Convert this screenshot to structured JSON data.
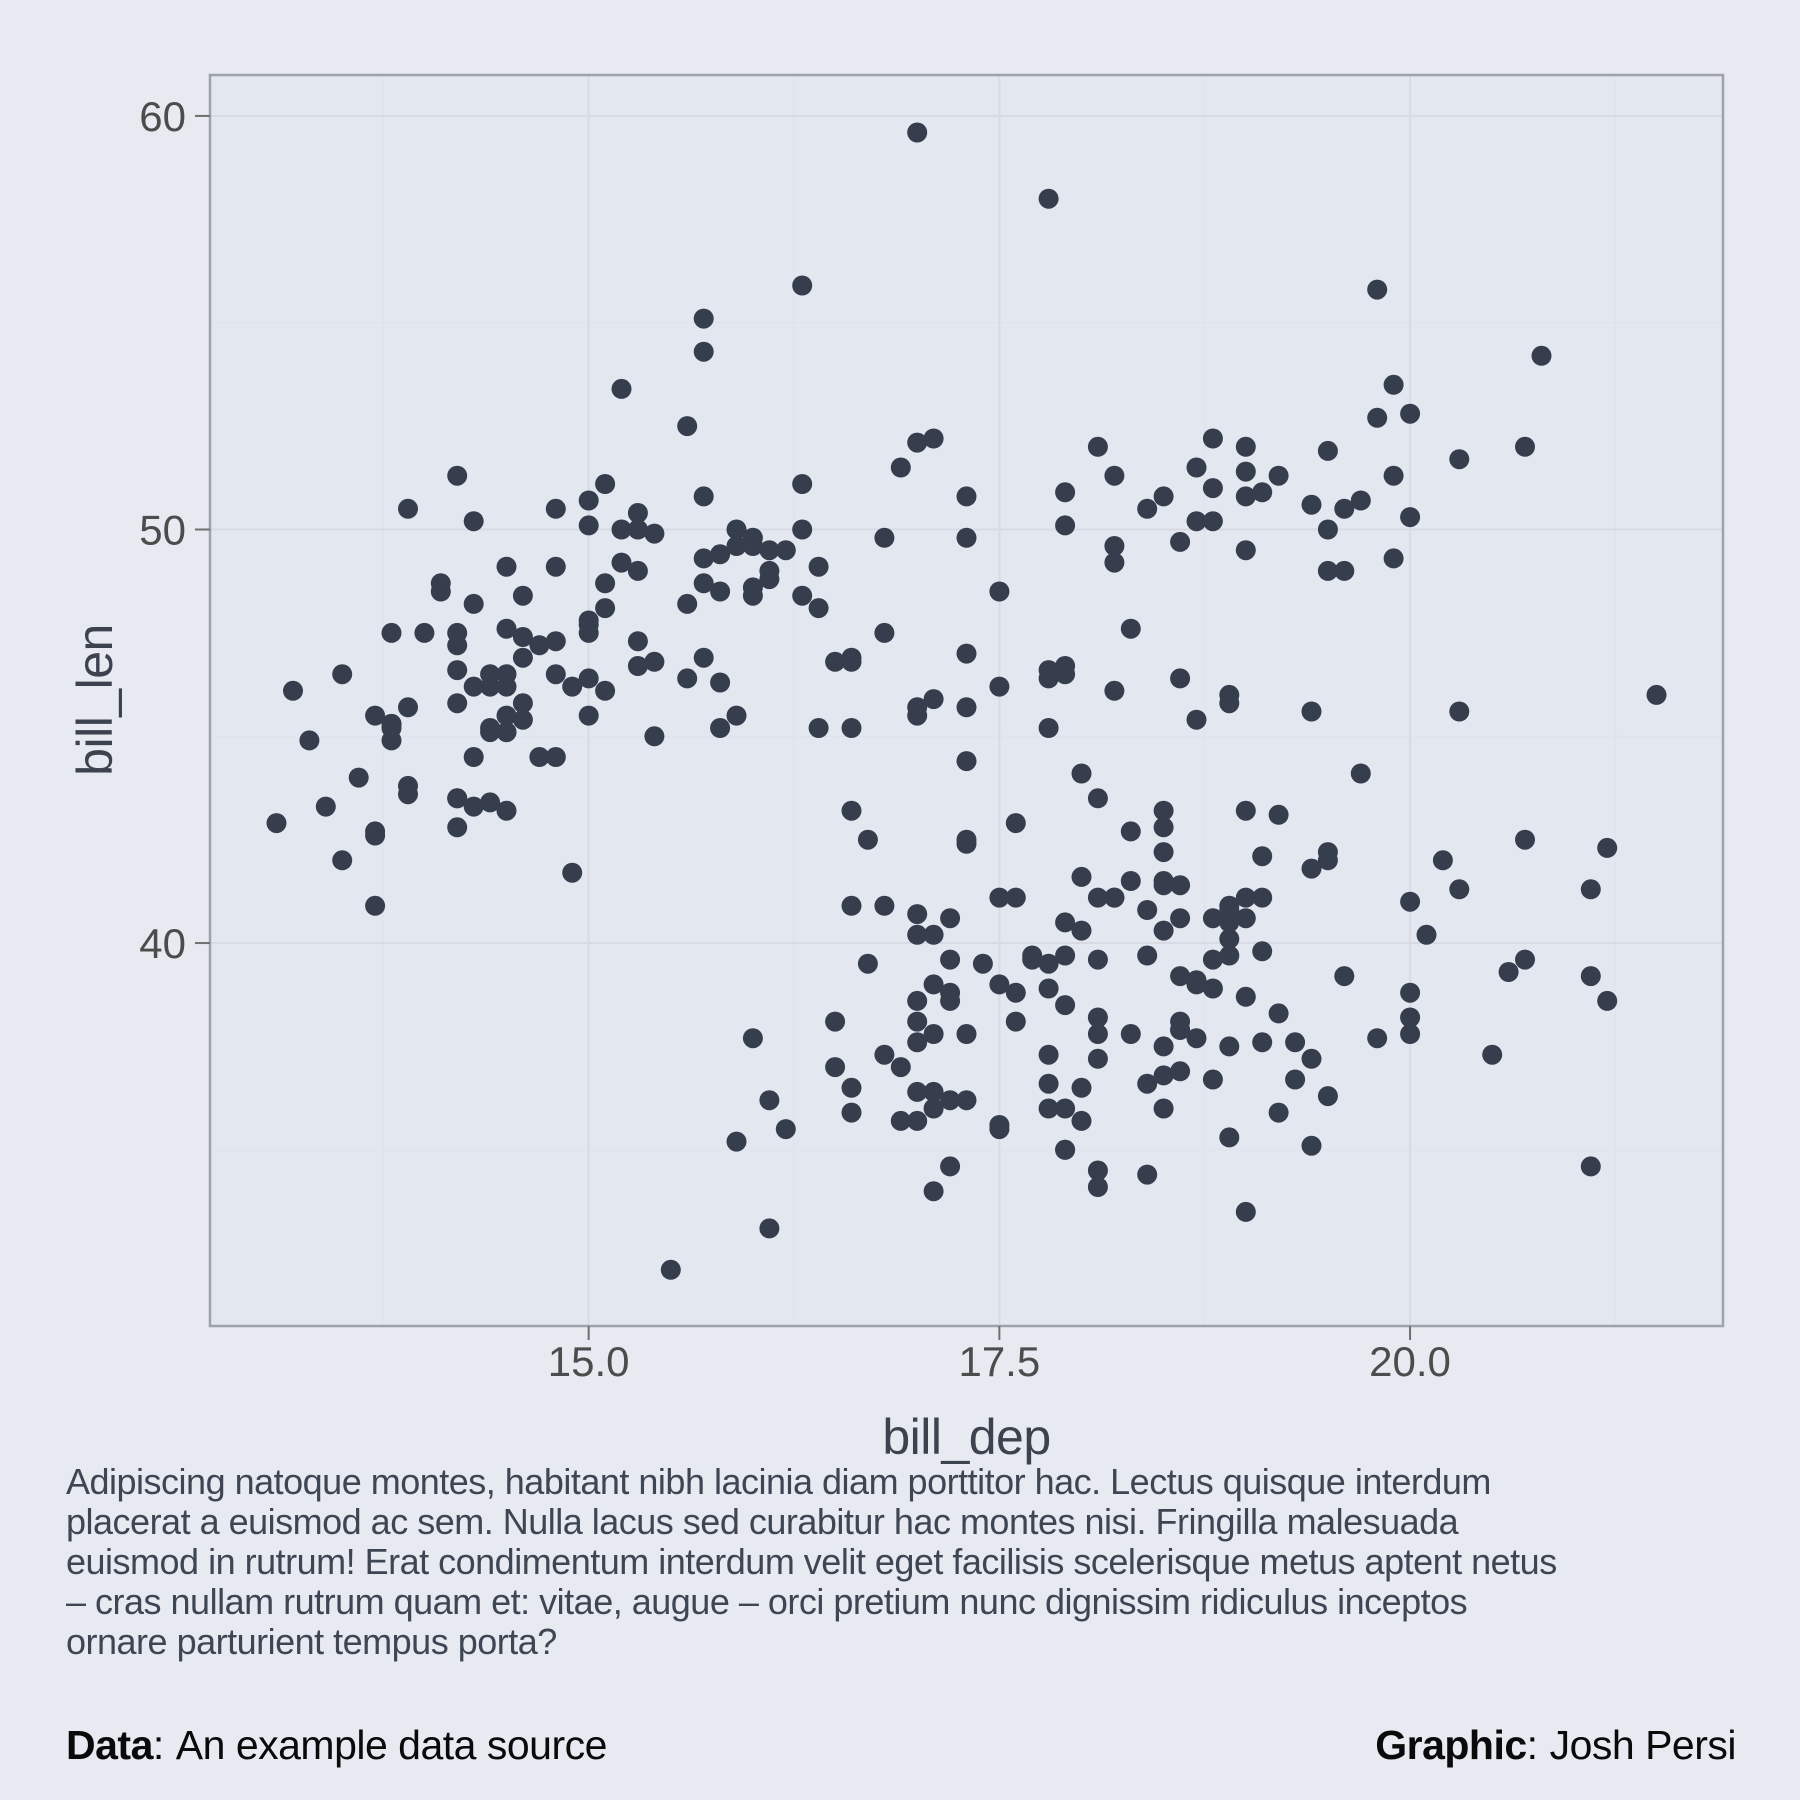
{
  "chart_data": {
    "type": "scatter",
    "xlabel": "bill_dep",
    "ylabel": "bill_len",
    "xlim": [
      12.695,
      21.905
    ],
    "ylim": [
      30.74,
      60.99
    ],
    "x_ticks": [
      15.0,
      17.5,
      20.0
    ],
    "x_tick_labels": [
      "15.0",
      "17.5",
      "20.0"
    ],
    "x_minor_ticks": [
      13.75,
      16.25,
      18.75,
      21.25
    ],
    "y_ticks": [
      40,
      50,
      60
    ],
    "y_tick_labels": [
      "40",
      "50",
      "60"
    ],
    "y_minor_ticks": [
      35,
      45,
      55
    ],
    "grid": true,
    "legend": "none",
    "point_color": "#363E4E",
    "point_radius": 10,
    "panel_bg": "#E3E7EF",
    "outer_bg": "#E8EAF1",
    "major_grid_color": "#D8DBE3",
    "minor_grid_color": "#E0E3EB",
    "border_color": "#9FA2A8",
    "tick_color": "#6F6F6F",
    "tick_label_color": "#4C4C4C",
    "points": [
      [
        18.7,
        39.1
      ],
      [
        17.4,
        39.5
      ],
      [
        18.0,
        40.3
      ],
      [
        19.3,
        36.7
      ],
      [
        20.6,
        39.3
      ],
      [
        17.8,
        38.9
      ],
      [
        19.6,
        39.2
      ],
      [
        18.1,
        34.1
      ],
      [
        20.2,
        42.0
      ],
      [
        17.1,
        37.8
      ],
      [
        17.3,
        37.8
      ],
      [
        17.6,
        41.1
      ],
      [
        21.2,
        38.6
      ],
      [
        21.1,
        34.6
      ],
      [
        17.8,
        36.6
      ],
      [
        19.0,
        38.7
      ],
      [
        20.7,
        42.5
      ],
      [
        18.4,
        34.4
      ],
      [
        21.5,
        46.0
      ],
      [
        18.3,
        37.8
      ],
      [
        18.7,
        37.7
      ],
      [
        19.2,
        35.9
      ],
      [
        18.1,
        38.2
      ],
      [
        17.2,
        38.8
      ],
      [
        18.9,
        35.3
      ],
      [
        18.6,
        40.6
      ],
      [
        17.9,
        40.5
      ],
      [
        18.6,
        37.9
      ],
      [
        18.9,
        40.5
      ],
      [
        16.7,
        39.5
      ],
      [
        18.1,
        37.2
      ],
      [
        17.8,
        39.5
      ],
      [
        18.9,
        40.9
      ],
      [
        17.0,
        36.4
      ],
      [
        21.1,
        39.2
      ],
      [
        20.0,
        38.8
      ],
      [
        18.5,
        42.2
      ],
      [
        19.3,
        37.6
      ],
      [
        19.1,
        39.8
      ],
      [
        18.0,
        36.5
      ],
      [
        18.4,
        40.8
      ],
      [
        18.5,
        36.0
      ],
      [
        19.7,
        44.1
      ],
      [
        16.9,
        37.0
      ],
      [
        18.8,
        39.6
      ],
      [
        19.0,
        41.1
      ],
      [
        18.9,
        37.5
      ],
      [
        17.9,
        36.0
      ],
      [
        21.2,
        42.3
      ],
      [
        17.7,
        39.6
      ],
      [
        18.9,
        40.1
      ],
      [
        17.9,
        35.0
      ],
      [
        19.5,
        42.0
      ],
      [
        18.1,
        34.5
      ],
      [
        18.6,
        41.4
      ],
      [
        17.5,
        39.0
      ],
      [
        18.8,
        40.6
      ],
      [
        16.6,
        36.5
      ],
      [
        19.1,
        37.6
      ],
      [
        16.9,
        35.7
      ],
      [
        21.1,
        41.3
      ],
      [
        17.0,
        37.6
      ],
      [
        18.2,
        41.1
      ],
      [
        17.1,
        36.4
      ],
      [
        18.0,
        41.6
      ],
      [
        16.2,
        35.5
      ],
      [
        19.1,
        41.1
      ],
      [
        16.6,
        35.9
      ],
      [
        19.4,
        41.8
      ],
      [
        19.0,
        33.5
      ],
      [
        18.4,
        39.7
      ],
      [
        17.2,
        39.6
      ],
      [
        18.9,
        45.8
      ],
      [
        17.5,
        35.5
      ],
      [
        18.5,
        42.8
      ],
      [
        16.8,
        40.9
      ],
      [
        19.4,
        37.2
      ],
      [
        16.1,
        36.2
      ],
      [
        19.1,
        42.1
      ],
      [
        17.2,
        34.6
      ],
      [
        17.6,
        42.9
      ],
      [
        18.8,
        36.7
      ],
      [
        19.4,
        35.1
      ],
      [
        20.5,
        37.3
      ],
      [
        20.3,
        41.3
      ],
      [
        19.5,
        36.3
      ],
      [
        18.6,
        36.9
      ],
      [
        19.2,
        38.3
      ],
      [
        18.8,
        38.9
      ],
      [
        18.0,
        35.7
      ],
      [
        18.1,
        41.1
      ],
      [
        17.1,
        34.0
      ],
      [
        18.1,
        39.6
      ],
      [
        17.3,
        36.2
      ],
      [
        18.9,
        40.8
      ],
      [
        18.6,
        38.1
      ],
      [
        18.5,
        40.3
      ],
      [
        16.1,
        33.1
      ],
      [
        18.5,
        43.2
      ],
      [
        17.9,
        35.0
      ],
      [
        20.0,
        41.0
      ],
      [
        16.0,
        37.7
      ],
      [
        20.0,
        37.8
      ],
      [
        18.6,
        37.9
      ],
      [
        18.9,
        39.7
      ],
      [
        17.2,
        38.6
      ],
      [
        20.0,
        38.2
      ],
      [
        17.0,
        38.1
      ],
      [
        19.0,
        43.2
      ],
      [
        16.5,
        38.1
      ],
      [
        20.3,
        45.6
      ],
      [
        17.7,
        39.7
      ],
      [
        19.5,
        42.2
      ],
      [
        20.7,
        39.6
      ],
      [
        18.3,
        42.7
      ],
      [
        17.0,
        38.6
      ],
      [
        17.8,
        37.3
      ],
      [
        17.0,
        35.7
      ],
      [
        18.2,
        41.1
      ],
      [
        17.2,
        36.2
      ],
      [
        19.8,
        37.7
      ],
      [
        17.0,
        40.2
      ],
      [
        18.5,
        41.4
      ],
      [
        15.9,
        35.2
      ],
      [
        19.0,
        40.6
      ],
      [
        17.6,
        38.8
      ],
      [
        18.3,
        41.5
      ],
      [
        17.1,
        39.0
      ],
      [
        18.0,
        44.1
      ],
      [
        17.9,
        38.5
      ],
      [
        19.2,
        43.1
      ],
      [
        18.5,
        36.8
      ],
      [
        18.5,
        37.5
      ],
      [
        17.6,
        38.1
      ],
      [
        17.5,
        41.1
      ],
      [
        17.5,
        35.6
      ],
      [
        20.1,
        40.2
      ],
      [
        16.5,
        37.0
      ],
      [
        17.9,
        39.7
      ],
      [
        17.1,
        40.2
      ],
      [
        17.2,
        40.6
      ],
      [
        15.5,
        32.1
      ],
      [
        17.0,
        40.7
      ],
      [
        16.8,
        37.3
      ],
      [
        18.7,
        39.0
      ],
      [
        18.6,
        39.2
      ],
      [
        18.4,
        36.6
      ],
      [
        17.8,
        36.0
      ],
      [
        18.1,
        37.8
      ],
      [
        17.1,
        36.0
      ],
      [
        18.5,
        41.5
      ],
      [
        17.9,
        46.5
      ],
      [
        19.5,
        50.0
      ],
      [
        19.2,
        51.3
      ],
      [
        18.7,
        45.4
      ],
      [
        19.8,
        52.7
      ],
      [
        17.8,
        45.2
      ],
      [
        18.2,
        46.1
      ],
      [
        18.2,
        51.3
      ],
      [
        18.9,
        46.0
      ],
      [
        19.9,
        51.3
      ],
      [
        17.8,
        46.6
      ],
      [
        20.3,
        51.7
      ],
      [
        17.3,
        47.0
      ],
      [
        18.1,
        52.0
      ],
      [
        17.1,
        45.9
      ],
      [
        19.6,
        50.5
      ],
      [
        20.0,
        50.3
      ],
      [
        17.8,
        58.0
      ],
      [
        18.6,
        46.4
      ],
      [
        18.2,
        49.2
      ],
      [
        17.3,
        42.4
      ],
      [
        17.5,
        48.5
      ],
      [
        16.6,
        43.2
      ],
      [
        19.4,
        50.6
      ],
      [
        17.9,
        46.7
      ],
      [
        19.0,
        52.0
      ],
      [
        18.4,
        50.5
      ],
      [
        19.0,
        49.5
      ],
      [
        17.8,
        46.4
      ],
      [
        20.0,
        52.8
      ],
      [
        16.6,
        40.9
      ],
      [
        20.8,
        54.2
      ],
      [
        16.7,
        42.5
      ],
      [
        18.8,
        51.0
      ],
      [
        18.6,
        49.7
      ],
      [
        16.8,
        47.5
      ],
      [
        18.3,
        47.6
      ],
      [
        20.7,
        52.0
      ],
      [
        16.6,
        46.9
      ],
      [
        19.9,
        53.5
      ],
      [
        19.5,
        49.0
      ],
      [
        17.5,
        46.2
      ],
      [
        19.1,
        50.9
      ],
      [
        17.0,
        45.5
      ],
      [
        17.9,
        50.9
      ],
      [
        18.5,
        50.8
      ],
      [
        17.9,
        50.1
      ],
      [
        19.6,
        49.0
      ],
      [
        18.7,
        51.5
      ],
      [
        17.3,
        49.8
      ],
      [
        16.4,
        48.1
      ],
      [
        19.0,
        51.4
      ],
      [
        17.3,
        45.7
      ],
      [
        19.7,
        50.7
      ],
      [
        17.3,
        42.5
      ],
      [
        18.8,
        52.2
      ],
      [
        16.6,
        45.2
      ],
      [
        19.9,
        49.3
      ],
      [
        18.8,
        50.2
      ],
      [
        19.4,
        45.6
      ],
      [
        19.5,
        51.9
      ],
      [
        16.5,
        46.8
      ],
      [
        17.0,
        45.7
      ],
      [
        19.8,
        55.8
      ],
      [
        18.1,
        43.5
      ],
      [
        18.2,
        49.6
      ],
      [
        19.0,
        50.8
      ],
      [
        18.7,
        50.2
      ],
      [
        13.2,
        46.1
      ],
      [
        16.3,
        50.0
      ],
      [
        14.1,
        48.7
      ],
      [
        15.2,
        50.0
      ],
      [
        14.5,
        47.6
      ],
      [
        13.5,
        46.5
      ],
      [
        14.6,
        45.4
      ],
      [
        15.3,
        46.7
      ],
      [
        13.4,
        43.3
      ],
      [
        15.4,
        46.8
      ],
      [
        13.7,
        40.9
      ],
      [
        16.1,
        49.0
      ],
      [
        13.7,
        45.5
      ],
      [
        14.6,
        48.4
      ],
      [
        14.6,
        45.8
      ],
      [
        15.7,
        49.3
      ],
      [
        13.5,
        42.0
      ],
      [
        15.2,
        49.2
      ],
      [
        14.5,
        46.2
      ],
      [
        15.1,
        48.7
      ],
      [
        14.3,
        50.2
      ],
      [
        14.5,
        45.1
      ],
      [
        14.5,
        46.5
      ],
      [
        15.8,
        46.3
      ],
      [
        13.1,
        42.9
      ],
      [
        15.1,
        46.1
      ],
      [
        14.3,
        44.5
      ],
      [
        15.0,
        47.8
      ],
      [
        14.3,
        48.2
      ],
      [
        15.3,
        50.0
      ],
      [
        15.3,
        47.3
      ],
      [
        14.2,
        42.8
      ],
      [
        14.5,
        45.1
      ],
      [
        17.0,
        59.6
      ],
      [
        14.8,
        49.1
      ],
      [
        16.3,
        48.4
      ],
      [
        13.7,
        42.6
      ],
      [
        17.3,
        44.4
      ],
      [
        13.6,
        44.0
      ],
      [
        15.7,
        48.7
      ],
      [
        13.7,
        42.7
      ],
      [
        16.0,
        49.6
      ],
      [
        13.8,
        45.3
      ],
      [
        15.9,
        49.6
      ],
      [
        13.9,
        50.5
      ],
      [
        13.9,
        43.6
      ],
      [
        15.9,
        45.5
      ],
      [
        13.3,
        44.9
      ],
      [
        15.8,
        45.2
      ],
      [
        14.2,
        46.6
      ],
      [
        14.1,
        48.5
      ],
      [
        14.4,
        45.1
      ],
      [
        15.0,
        50.1
      ],
      [
        14.4,
        46.5
      ],
      [
        15.4,
        45.0
      ],
      [
        13.9,
        43.8
      ],
      [
        15.0,
        45.5
      ],
      [
        14.5,
        43.2
      ],
      [
        15.3,
        50.4
      ],
      [
        13.8,
        45.3
      ],
      [
        14.9,
        46.2
      ],
      [
        13.9,
        45.7
      ],
      [
        15.7,
        54.3
      ],
      [
        14.2,
        45.8
      ],
      [
        16.8,
        49.8
      ],
      [
        14.4,
        46.2
      ],
      [
        16.2,
        49.5
      ],
      [
        14.2,
        43.5
      ],
      [
        15.0,
        50.7
      ],
      [
        15.0,
        47.7
      ],
      [
        15.6,
        46.4
      ],
      [
        15.6,
        48.2
      ],
      [
        14.8,
        46.5
      ],
      [
        15.0,
        46.4
      ],
      [
        16.0,
        48.6
      ],
      [
        14.2,
        47.5
      ],
      [
        16.3,
        51.1
      ],
      [
        13.8,
        45.2
      ],
      [
        16.4,
        45.2
      ],
      [
        14.5,
        49.1
      ],
      [
        15.6,
        52.5
      ],
      [
        14.6,
        47.4
      ],
      [
        15.9,
        50.0
      ],
      [
        13.8,
        44.9
      ],
      [
        17.3,
        50.8
      ],
      [
        14.4,
        43.4
      ],
      [
        14.2,
        51.3
      ],
      [
        14.0,
        47.5
      ],
      [
        17.0,
        52.1
      ],
      [
        15.0,
        47.5
      ],
      [
        17.1,
        52.2
      ],
      [
        14.5,
        45.5
      ],
      [
        16.1,
        49.5
      ],
      [
        14.7,
        44.5
      ],
      [
        15.7,
        50.8
      ],
      [
        15.8,
        49.4
      ],
      [
        14.6,
        46.9
      ],
      [
        16.0,
        48.4
      ],
      [
        15.1,
        51.1
      ],
      [
        15.8,
        48.5
      ],
      [
        16.3,
        55.9
      ],
      [
        14.2,
        47.2
      ],
      [
        16.4,
        49.1
      ],
      [
        14.8,
        47.3
      ],
      [
        16.6,
        46.8
      ],
      [
        14.9,
        41.7
      ],
      [
        15.2,
        53.4
      ],
      [
        14.3,
        43.3
      ],
      [
        15.1,
        48.1
      ],
      [
        14.8,
        50.5
      ],
      [
        16.0,
        49.8
      ],
      [
        14.2,
        43.5
      ],
      [
        16.9,
        51.5
      ],
      [
        14.3,
        46.2
      ],
      [
        15.7,
        55.1
      ],
      [
        14.8,
        44.5
      ],
      [
        16.1,
        48.8
      ],
      [
        14.7,
        47.2
      ],
      [
        14.4,
        45.2
      ],
      [
        15.4,
        49.9
      ],
      [
        13.8,
        47.5
      ],
      [
        15.3,
        49.0
      ],
      [
        15.7,
        46.9
      ]
    ]
  },
  "caption": "Adipiscing natoque montes, habitant nibh lacinia diam porttitor hac. Lectus quisque interdum placerat a euismod ac sem. Nulla lacus sed curabitur hac montes nisi. Fringilla malesuada euismod in rutrum! Erat condimentum interdum velit eget facilisis scelerisque metus aptent netus – cras nullam rutrum quam et: vitae, augue – orci pretium nunc dignissim ridiculus inceptos ornare parturient tempus porta?",
  "footer": {
    "data_label": "Data",
    "data_separator": ":",
    "data_value": "An example data source",
    "graphic_label": "Graphic",
    "graphic_separator": ":",
    "graphic_value": "Josh Persi"
  }
}
